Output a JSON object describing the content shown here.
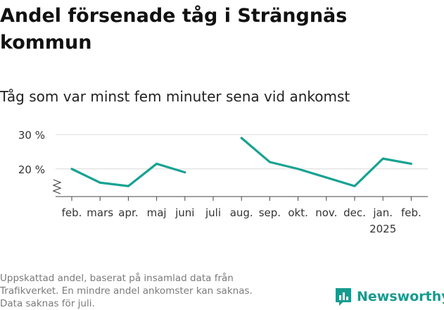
{
  "title": "Andel försenade tåg i Strängnäs kommun",
  "subtitle": "Tåg som var minst fem minuter sena vid ankomst",
  "footnote": [
    "Uppskattad andel, baserat på insamlad data från",
    "Trafikverket. En mindre andel ankomster kan saknas.",
    "Data saknas för juli."
  ],
  "brand": {
    "name": "Newsworthy"
  },
  "colors": {
    "line": "#17a292",
    "axis": "#444444",
    "grid": "#d9d9d9",
    "brand": "#169b8e"
  },
  "chart_data": {
    "type": "line",
    "title": "Andel försenade tåg i Strängnäs kommun",
    "subtitle": "Tåg som var minst fem minuter sena vid ankomst",
    "categories": [
      "feb.",
      "mars",
      "apr.",
      "maj",
      "juni",
      "juli",
      "aug.",
      "sep.",
      "okt.",
      "nov.",
      "dec.",
      "jan.",
      "feb."
    ],
    "year_labels": [
      "",
      "",
      "",
      "",
      "",
      "",
      "",
      "",
      "",
      "",
      "",
      "2025",
      ""
    ],
    "values": [
      20,
      16,
      15,
      21.5,
      19,
      null,
      29,
      22,
      20,
      17.5,
      15,
      23,
      21.5
    ],
    "y_ticks": [
      20,
      30
    ],
    "y_tick_labels": [
      "20 %",
      "30 %"
    ],
    "ylim": [
      14,
      30
    ],
    "axis_break": true,
    "grid": true
  }
}
